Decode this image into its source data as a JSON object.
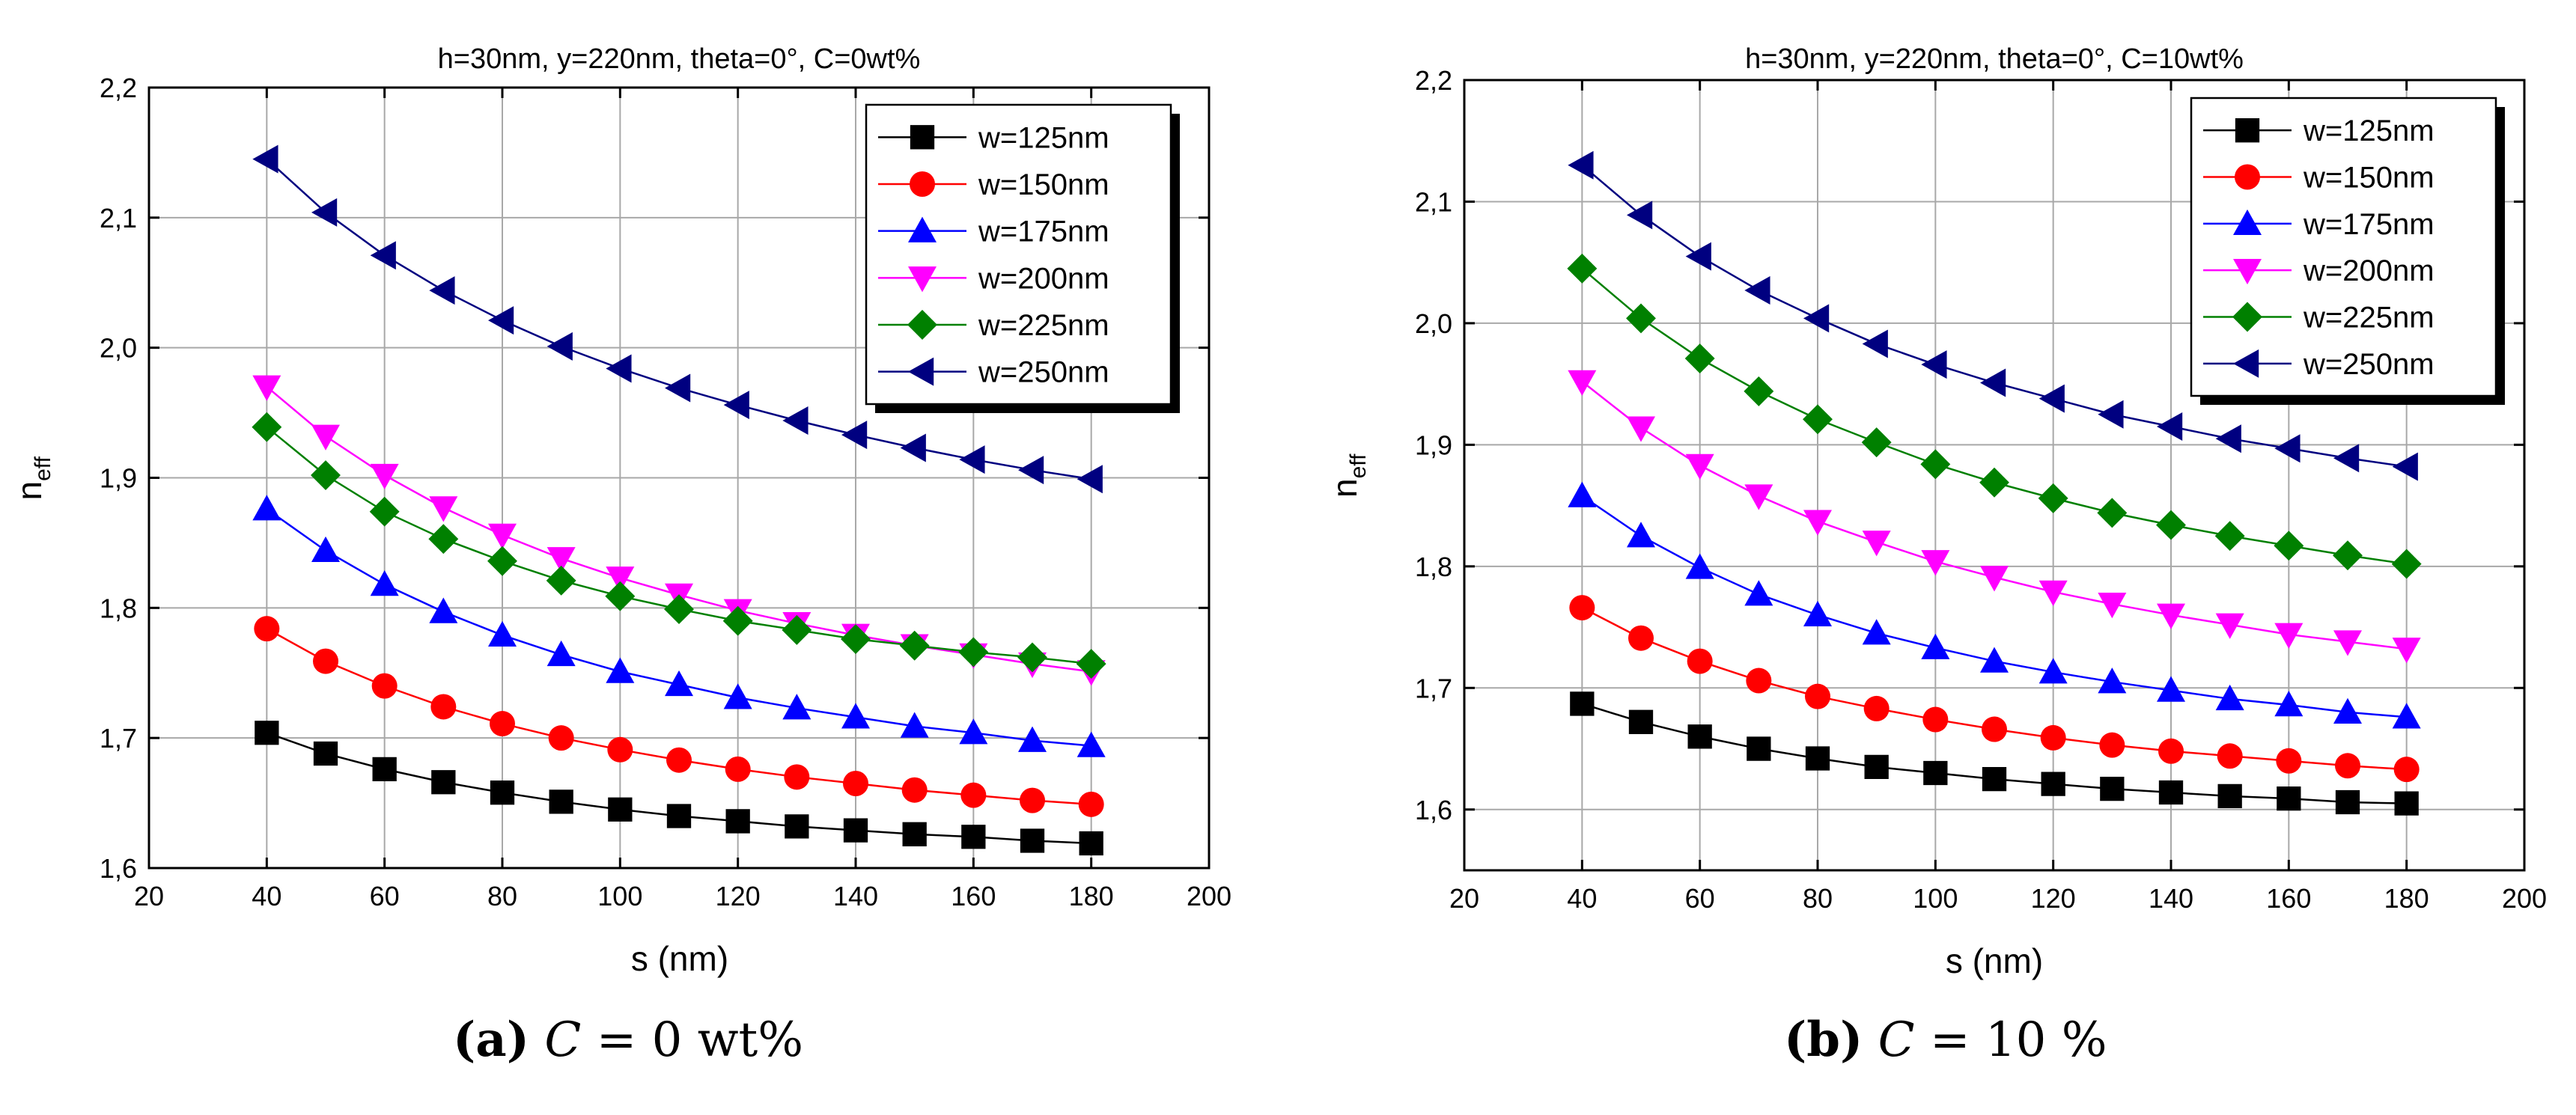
{
  "chart_data": [
    {
      "type": "line",
      "title": "h=30nm, y=220nm, theta=0°, C=0wt%",
      "xlabel": "s (nm)",
      "ylabel": "n",
      "ylabel_sub": "eff",
      "xlim": [
        20,
        200
      ],
      "ylim": [
        1.6,
        2.2
      ],
      "xticks": [
        20,
        40,
        60,
        80,
        100,
        120,
        140,
        160,
        180,
        200
      ],
      "xtick_labels": [
        "20",
        "40",
        "60",
        "80",
        "100",
        "120",
        "140",
        "160",
        "180",
        "200"
      ],
      "yticks": [
        1.6,
        1.7,
        1.8,
        1.9,
        2.0,
        2.1,
        2.2
      ],
      "ytick_labels": [
        "1,6",
        "1,7",
        "1,8",
        "1,9",
        "2,0",
        "2,1",
        "2,2"
      ],
      "grid": true,
      "legend_position": "top-right",
      "x": [
        40,
        50,
        60,
        70,
        80,
        90,
        100,
        110,
        120,
        130,
        140,
        150,
        160,
        170,
        180
      ],
      "series": [
        {
          "name": "w=125nm",
          "color": "#000000",
          "marker": "square",
          "values": [
            1.704,
            1.688,
            1.676,
            1.666,
            1.658,
            1.651,
            1.645,
            1.64,
            1.636,
            1.632,
            1.629,
            1.626,
            1.624,
            1.621,
            1.619
          ]
        },
        {
          "name": "w=150nm",
          "color": "#ff0000",
          "marker": "circle",
          "values": [
            1.784,
            1.759,
            1.74,
            1.724,
            1.711,
            1.7,
            1.691,
            1.683,
            1.676,
            1.67,
            1.665,
            1.66,
            1.656,
            1.652,
            1.649
          ]
        },
        {
          "name": "w=175nm",
          "color": "#0000ff",
          "marker": "triangle-up",
          "values": [
            1.876,
            1.844,
            1.818,
            1.797,
            1.779,
            1.764,
            1.751,
            1.741,
            1.731,
            1.723,
            1.716,
            1.709,
            1.704,
            1.698,
            1.694
          ]
        },
        {
          "name": "w=200nm",
          "color": "#ff00ff",
          "marker": "triangle-down",
          "values": [
            1.97,
            1.932,
            1.902,
            1.877,
            1.856,
            1.838,
            1.823,
            1.81,
            1.798,
            1.788,
            1.779,
            1.771,
            1.764,
            1.757,
            1.751
          ]
        },
        {
          "name": "w=225nm",
          "color": "#008000",
          "marker": "diamond",
          "values": [
            1.939,
            1.902,
            1.874,
            1.853,
            1.836,
            1.821,
            1.809,
            1.799,
            1.79,
            1.783,
            1.776,
            1.771,
            1.766,
            1.762,
            1.757
          ]
        },
        {
          "name": "w=250nm",
          "color": "#000080",
          "marker": "triangle-left",
          "values": [
            2.145,
            2.104,
            2.071,
            2.044,
            2.021,
            2.001,
            1.984,
            1.969,
            1.956,
            1.944,
            1.933,
            1.923,
            1.914,
            1.906,
            1.899
          ]
        }
      ]
    },
    {
      "type": "line",
      "title": "h=30nm, y=220nm, theta=0°, C=10wt%",
      "xlabel": "s (nm)",
      "ylabel": "n",
      "ylabel_sub": "eff",
      "xlim": [
        20,
        200
      ],
      "ylim": [
        1.55,
        2.2
      ],
      "xticks": [
        20,
        40,
        60,
        80,
        100,
        120,
        140,
        160,
        180,
        200
      ],
      "xtick_labels": [
        "20",
        "40",
        "60",
        "80",
        "100",
        "120",
        "140",
        "160",
        "180",
        "200"
      ],
      "yticks": [
        1.6,
        1.7,
        1.8,
        1.9,
        2.0,
        2.1,
        2.2
      ],
      "ytick_labels": [
        "1,6",
        "1,7",
        "1,8",
        "1,9",
        "2,0",
        "2,1",
        "2,2"
      ],
      "grid": true,
      "legend_position": "top-right",
      "x": [
        40,
        50,
        60,
        70,
        80,
        90,
        100,
        110,
        120,
        130,
        140,
        150,
        160,
        170,
        180
      ],
      "series": [
        {
          "name": "w=125nm",
          "color": "#000000",
          "marker": "square",
          "values": [
            1.687,
            1.672,
            1.66,
            1.65,
            1.642,
            1.635,
            1.63,
            1.625,
            1.621,
            1.617,
            1.614,
            1.611,
            1.609,
            1.606,
            1.605
          ]
        },
        {
          "name": "w=150nm",
          "color": "#ff0000",
          "marker": "circle",
          "values": [
            1.766,
            1.741,
            1.722,
            1.706,
            1.693,
            1.683,
            1.674,
            1.666,
            1.659,
            1.653,
            1.648,
            1.644,
            1.64,
            1.636,
            1.633
          ]
        },
        {
          "name": "w=175nm",
          "color": "#0000ff",
          "marker": "triangle-up",
          "values": [
            1.858,
            1.825,
            1.799,
            1.777,
            1.76,
            1.745,
            1.733,
            1.722,
            1.713,
            1.705,
            1.698,
            1.691,
            1.686,
            1.68,
            1.676
          ]
        },
        {
          "name": "w=200nm",
          "color": "#ff00ff",
          "marker": "triangle-down",
          "values": [
            1.952,
            1.914,
            1.883,
            1.858,
            1.837,
            1.82,
            1.804,
            1.791,
            1.779,
            1.769,
            1.76,
            1.752,
            1.744,
            1.738,
            1.732
          ]
        },
        {
          "name": "w=225nm",
          "color": "#008000",
          "marker": "diamond",
          "values": [
            2.045,
            2.004,
            1.971,
            1.944,
            1.921,
            1.902,
            1.884,
            1.869,
            1.856,
            1.844,
            1.834,
            1.825,
            1.817,
            1.809,
            1.802
          ]
        },
        {
          "name": "w=250nm",
          "color": "#000080",
          "marker": "triangle-left",
          "values": [
            2.13,
            2.089,
            2.055,
            2.027,
            2.004,
            1.983,
            1.966,
            1.951,
            1.938,
            1.925,
            1.915,
            1.905,
            1.897,
            1.889,
            1.882
          ]
        }
      ]
    }
  ],
  "captions": [
    {
      "label": "(a)",
      "prefix": "C",
      "equals": "=",
      "value": "0 wt%"
    },
    {
      "label": "(b)",
      "prefix": "C",
      "equals": "=",
      "value": "10 %"
    }
  ]
}
